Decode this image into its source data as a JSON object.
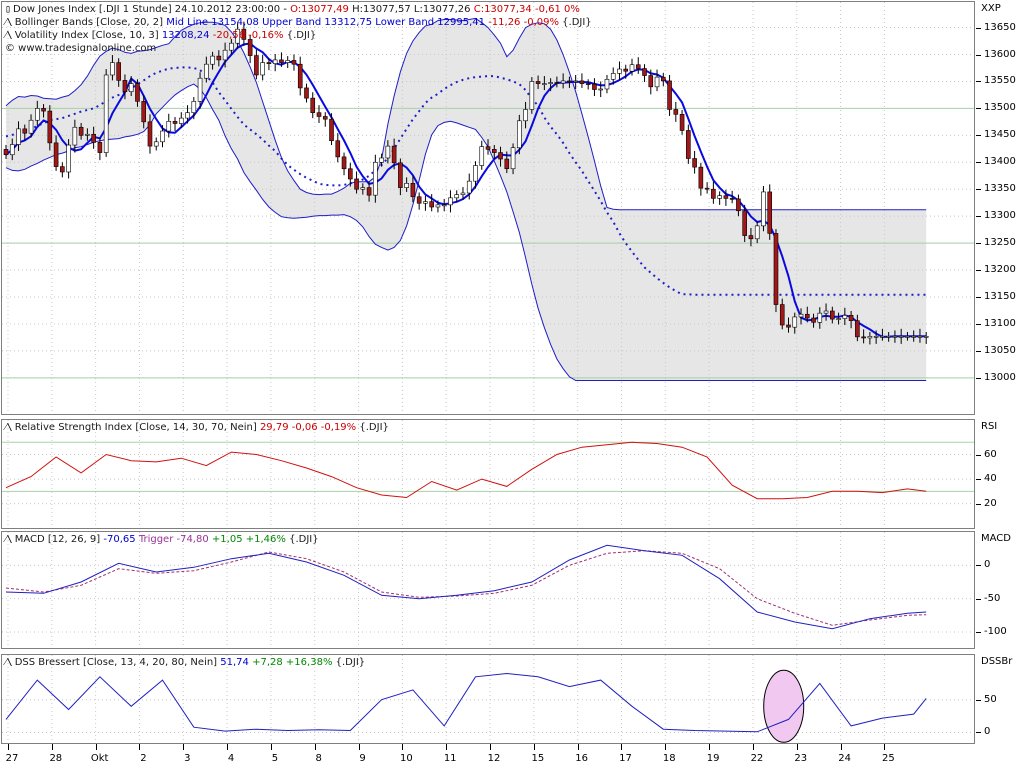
{
  "main_header": {
    "line1": {
      "name": "Dow Jones Index [.DJI  1 Stunde] 24.10.2012 23:00:00",
      "o": "O:13077,49",
      "h": "H:13077,57",
      "l": "L:13077,26",
      "c": "C:13077,34",
      "chg": "-0,61 0%"
    },
    "line2": {
      "name": "Bollinger Bands [Close, 20, 2]",
      "vals": "Mid Line 13154,08 Upper Band 13312,75 Lower Band 12995,41",
      "chg": "-11,26 -0,09%",
      "sym": "{.DJI}"
    },
    "line3": {
      "name": "Volatility Index [Close, 10, 3]",
      "vals": "13208,24",
      "chg": "-20,56 -0,16%",
      "sym": "{.DJI}"
    },
    "website": "© www.tradesignalonline.com"
  },
  "rsi_header": {
    "name": "Relative Strength Index [Close, 14, 30, 70, Nein]",
    "vals": "29,79 -0,06 -0,19%",
    "sym": "{.DJI}"
  },
  "macd_header": {
    "name": "MACD [12, 26, 9]",
    "v1": "-70,65",
    "trig": "Trigger -74,80",
    "chg": "+1,05 +1,46%",
    "sym": "{.DJI}"
  },
  "dss_header": {
    "name": "DSS Bressert [Close, 13, 4, 20, 80, Nein]",
    "v1": "51,74",
    "chg": "+7,28 +16,38%",
    "sym": "{.DJI}"
  },
  "axis_labels": {
    "main": "XXP",
    "rsi": "RSI",
    "macd": "MACD",
    "dss": "DSSBr"
  },
  "x_labels": [
    "27",
    "28",
    "Okt",
    "2",
    "3",
    "4",
    "5",
    "8",
    "9",
    "10",
    "11",
    "12",
    "15",
    "16",
    "17",
    "18",
    "19",
    "22",
    "23",
    "24",
    "25"
  ],
  "main_ticks": [
    "13650",
    "13600",
    "13550",
    "13500",
    "13450",
    "13400",
    "13350",
    "13300",
    "13250",
    "13200",
    "13150",
    "13100",
    "13050",
    "13000"
  ],
  "rsi_ticks": [
    "60",
    "40",
    "20"
  ],
  "macd_ticks": [
    "0",
    "-50",
    "-100"
  ],
  "dss_ticks": [
    "50",
    "0"
  ],
  "colors": {
    "candle_up": "#ffffff",
    "candle_down": "#a01818",
    "band": "#1e1ec8",
    "vol": "#0a0ae0",
    "rsi": "#d01010",
    "macd": "#2020c0",
    "trigger": "#a03070",
    "dss": "#2020c0",
    "highlight_fill": "#f0c8f0"
  },
  "chart_data": [
    {
      "type": "candlestick",
      "title": "Dow Jones Index [.DJI  1 Stunde]",
      "ylim": [
        12970,
        13690
      ],
      "x": [
        0,
        1,
        2,
        3,
        4,
        5,
        6,
        7,
        8,
        9,
        10,
        11,
        12,
        13,
        14,
        15,
        16,
        17,
        18,
        19,
        20,
        21,
        22,
        23,
        24,
        25,
        26,
        27,
        28,
        29,
        30,
        31,
        32,
        33,
        34,
        35,
        36,
        37,
        38,
        39,
        40,
        41,
        42,
        43,
        44,
        45,
        46,
        47,
        48,
        49,
        50,
        51,
        52,
        53,
        54,
        55,
        56,
        57,
        58,
        59,
        60,
        61,
        62,
        63,
        64,
        65,
        66,
        67,
        68,
        69,
        70,
        71,
        72,
        73,
        74,
        75,
        76,
        77,
        78,
        79,
        80,
        81,
        82,
        83,
        84,
        85,
        86,
        87,
        88,
        89,
        90,
        91,
        92,
        93,
        94,
        95,
        96,
        97,
        98,
        99,
        100,
        101,
        102,
        103,
        104,
        105,
        106,
        107,
        108,
        109,
        110,
        111,
        112,
        113,
        114,
        115,
        116,
        117,
        118,
        119,
        120,
        121,
        122,
        123,
        124,
        125,
        126,
        127,
        128,
        129,
        130,
        131,
        132,
        133,
        134,
        135,
        136,
        137,
        138,
        139,
        140,
        141,
        142,
        143,
        144,
        145,
        146,
        147
      ],
      "close": [
        13414,
        13433,
        13462,
        13454,
        13478,
        13500,
        13495,
        13436,
        13392,
        13382,
        13432,
        13465,
        13450,
        13452,
        13437,
        13418,
        13562,
        13585,
        13552,
        13531,
        13546,
        13513,
        13475,
        13430,
        13438,
        13458,
        13476,
        13472,
        13482,
        13492,
        13513,
        13556,
        13582,
        13597,
        13590,
        13608,
        13621,
        13647,
        13628,
        13598,
        13562,
        13585,
        13583,
        13590,
        13585,
        13589,
        13582,
        13538,
        13519,
        13492,
        13485,
        13480,
        13440,
        13410,
        13388,
        13369,
        13350,
        13353,
        13339,
        13400,
        13408,
        13430,
        13399,
        13353,
        13361,
        13336,
        13324,
        13327,
        13317,
        13321,
        13321,
        13334,
        13340,
        13343,
        13365,
        13394,
        13429,
        13424,
        13418,
        13406,
        13388,
        13427,
        13477,
        13498,
        13550,
        13546,
        13546,
        13548,
        13547,
        13551,
        13550,
        13551,
        13546,
        13545,
        13535,
        13536,
        13554,
        13565,
        13573,
        13569,
        13581,
        13574,
        13561,
        13540,
        13558,
        13551,
        13498,
        13489,
        13459,
        13407,
        13391,
        13352,
        13350,
        13333,
        13338,
        13333,
        13332,
        13310,
        13264,
        13258,
        13282,
        13345,
        13268,
        13136,
        13098,
        13094,
        13113,
        13118,
        13111,
        13103,
        13120,
        13124,
        13109,
        13110,
        13116,
        13106,
        13076,
        13074,
        13077,
        13077,
        13077,
        13077,
        13077,
        13077,
        13077,
        13077,
        13077,
        13077
      ],
      "upper_band": [
        13505,
        13515,
        13522,
        13521,
        13524,
        13523,
        13519,
        13518,
        13517,
        13521,
        13524,
        13533,
        13544,
        13560,
        13580,
        13597,
        13606,
        13612,
        13609,
        13604,
        13602,
        13606,
        13607,
        13609,
        13613,
        13617,
        13620,
        13633,
        13645,
        13651,
        13656,
        13659,
        13660,
        13660,
        13658,
        13654,
        13642,
        13625,
        13603,
        13577,
        13548,
        13512,
        13477,
        13441,
        13409,
        13384,
        13366,
        13350,
        13344,
        13341,
        13340,
        13341,
        13341,
        13346,
        13352,
        13361,
        13364,
        13364,
        13364,
        13373,
        13406,
        13471,
        13523,
        13568,
        13602,
        13625,
        13641,
        13653,
        13656,
        13663,
        13665,
        13665,
        13664,
        13663,
        13665,
        13667,
        13659,
        13650,
        13636,
        13621,
        13596,
        13608,
        13630,
        13650,
        13656,
        13659,
        13657,
        13647,
        13627,
        13600,
        13567,
        13531,
        13490,
        13447,
        13403,
        13356,
        13316,
        13313,
        13312,
        13312,
        13312,
        13312,
        13312,
        13312,
        13312,
        13312,
        13312,
        13312,
        13312,
        13312,
        13312,
        13312,
        13312,
        13312,
        13312,
        13312,
        13312,
        13312,
        13312,
        13312,
        13312,
        13312,
        13312,
        13312,
        13312,
        13312,
        13312,
        13312,
        13312,
        13312,
        13312,
        13312,
        13312,
        13312,
        13312,
        13312,
        13312,
        13312,
        13312,
        13312,
        13312,
        13312,
        13312,
        13312,
        13312,
        13312,
        13312,
        13312
      ],
      "mid_line": [
        13448,
        13451,
        13453,
        13455,
        13460,
        13468,
        13472,
        13478,
        13480,
        13482,
        13486,
        13490,
        13494,
        13497,
        13500,
        13506,
        13514,
        13520,
        13525,
        13530,
        13537,
        13545,
        13552,
        13560,
        13566,
        13570,
        13574,
        13575,
        13576,
        13576,
        13575,
        13571,
        13560,
        13548,
        13530,
        13515,
        13499,
        13484,
        13470,
        13461,
        13452,
        13442,
        13431,
        13421,
        13407,
        13395,
        13386,
        13378,
        13371,
        13366,
        13360,
        13358,
        13357,
        13357,
        13358,
        13361,
        13363,
        13368,
        13375,
        13385,
        13395,
        13408,
        13425,
        13444,
        13462,
        13480,
        13495,
        13510,
        13520,
        13527,
        13536,
        13543,
        13549,
        13553,
        13556,
        13558,
        13559,
        13560,
        13560,
        13557,
        13554,
        13550,
        13545,
        13534,
        13518,
        13505,
        13483,
        13466,
        13452,
        13436,
        13417,
        13400,
        13384,
        13365,
        13347,
        13328,
        13307,
        13290,
        13268,
        13250,
        13234,
        13219,
        13205,
        13195,
        13185,
        13176,
        13168,
        13161,
        13155,
        13155,
        13154,
        13154,
        13154,
        13154,
        13154,
        13154,
        13154,
        13154,
        13154,
        13154,
        13154,
        13154,
        13154,
        13154,
        13154,
        13154,
        13154,
        13154,
        13154,
        13154,
        13154,
        13154,
        13154,
        13154,
        13154,
        13154,
        13154,
        13154,
        13154,
        13154,
        13154,
        13154,
        13154,
        13154,
        13154,
        13154,
        13154,
        13154
      ],
      "lower_band": [
        13390,
        13385,
        13384,
        13387,
        13393,
        13398,
        13404,
        13409,
        13414,
        13417,
        13421,
        13427,
        13429,
        13433,
        13437,
        13440,
        13442,
        13443,
        13444,
        13447,
        13449,
        13452,
        13457,
        13470,
        13490,
        13502,
        13514,
        13525,
        13533,
        13540,
        13545,
        13536,
        13520,
        13498,
        13478,
        13449,
        13425,
        13406,
        13381,
        13364,
        13348,
        13331,
        13317,
        13307,
        13299,
        13297,
        13296,
        13297,
        13298,
        13300,
        13301,
        13301,
        13302,
        13302,
        13303,
        13299,
        13292,
        13280,
        13262,
        13248,
        13242,
        13237,
        13242,
        13255,
        13282,
        13321,
        13367,
        13415,
        13451,
        13468,
        13474,
        13476,
        13473,
        13469,
        13465,
        13461,
        13446,
        13429,
        13402,
        13375,
        13345,
        13308,
        13270,
        13223,
        13174,
        13129,
        13093,
        13062,
        13035,
        13017,
        13002,
        12995,
        12995,
        12995,
        12995,
        12995,
        12995,
        12995,
        12995,
        12995,
        12995,
        12995,
        12995,
        12995,
        12995,
        12995,
        12995,
        12995,
        12995,
        12995,
        12995,
        12995,
        12995,
        12995,
        12995,
        12995,
        12995,
        12995,
        12995,
        12995,
        12995,
        12995,
        12995,
        12995,
        12995,
        12995,
        12995,
        12995,
        12995,
        12995,
        12995,
        12995,
        12995,
        12995,
        12995,
        12995,
        12995,
        12995,
        12995,
        12995,
        12995,
        12995,
        12995,
        12995,
        12995,
        12995,
        12995,
        12995
      ]
    },
    {
      "type": "line",
      "title": "Relative Strength Index [Close, 14, 30, 70, Nein]",
      "ylim": [
        5,
        80
      ],
      "x": [
        0,
        4,
        8,
        12,
        16,
        20,
        24,
        28,
        32,
        36,
        40,
        44,
        48,
        52,
        56,
        60,
        64,
        68,
        72,
        76,
        80,
        84,
        88,
        92,
        96,
        100,
        104,
        108,
        112,
        116,
        120,
        124,
        128,
        132,
        136,
        140,
        144,
        147
      ],
      "values": [
        33,
        42,
        58,
        45,
        60,
        55,
        54,
        57,
        51,
        62,
        60,
        55,
        49,
        42,
        33,
        27,
        25,
        38,
        31,
        40,
        34,
        48,
        60,
        66,
        68,
        70,
        69,
        66,
        58,
        35,
        24,
        24,
        25,
        30,
        30,
        29,
        32,
        30
      ]
    },
    {
      "type": "line",
      "title": "MACD [12, 26, 9]",
      "ylim": [
        -115,
        35
      ],
      "x": [
        0,
        6,
        12,
        18,
        24,
        30,
        36,
        42,
        48,
        54,
        60,
        66,
        72,
        78,
        84,
        90,
        96,
        102,
        108,
        114,
        120,
        126,
        132,
        138,
        144,
        147
      ],
      "series": [
        {
          "name": "MACD",
          "values": [
            -40,
            -42,
            -25,
            3,
            -10,
            -3,
            10,
            18,
            5,
            -15,
            -45,
            -50,
            -45,
            -38,
            -25,
            8,
            30,
            22,
            15,
            -20,
            -70,
            -85,
            -95,
            -80,
            -72,
            -70
          ]
        },
        {
          "name": "Trigger",
          "values": [
            -34,
            -40,
            -30,
            -5,
            -12,
            -8,
            5,
            20,
            10,
            -10,
            -40,
            -48,
            -46,
            -42,
            -30,
            0,
            18,
            22,
            18,
            -5,
            -50,
            -72,
            -90,
            -82,
            -75,
            -74
          ]
        }
      ]
    },
    {
      "type": "line",
      "title": "DSS Bressert [Close, 13, 4, 20, 80, Nein]",
      "ylim": [
        -10,
        100
      ],
      "x": [
        0,
        5,
        10,
        15,
        20,
        25,
        30,
        35,
        40,
        45,
        50,
        55,
        60,
        65,
        70,
        75,
        80,
        85,
        90,
        95,
        100,
        105,
        110,
        115,
        120,
        125,
        130,
        135,
        140,
        145,
        147
      ],
      "values": [
        20,
        80,
        35,
        85,
        40,
        80,
        8,
        2,
        5,
        3,
        4,
        3,
        50,
        65,
        10,
        85,
        90,
        85,
        70,
        80,
        40,
        5,
        3,
        2,
        1,
        20,
        75,
        10,
        22,
        28,
        52
      ]
    }
  ]
}
